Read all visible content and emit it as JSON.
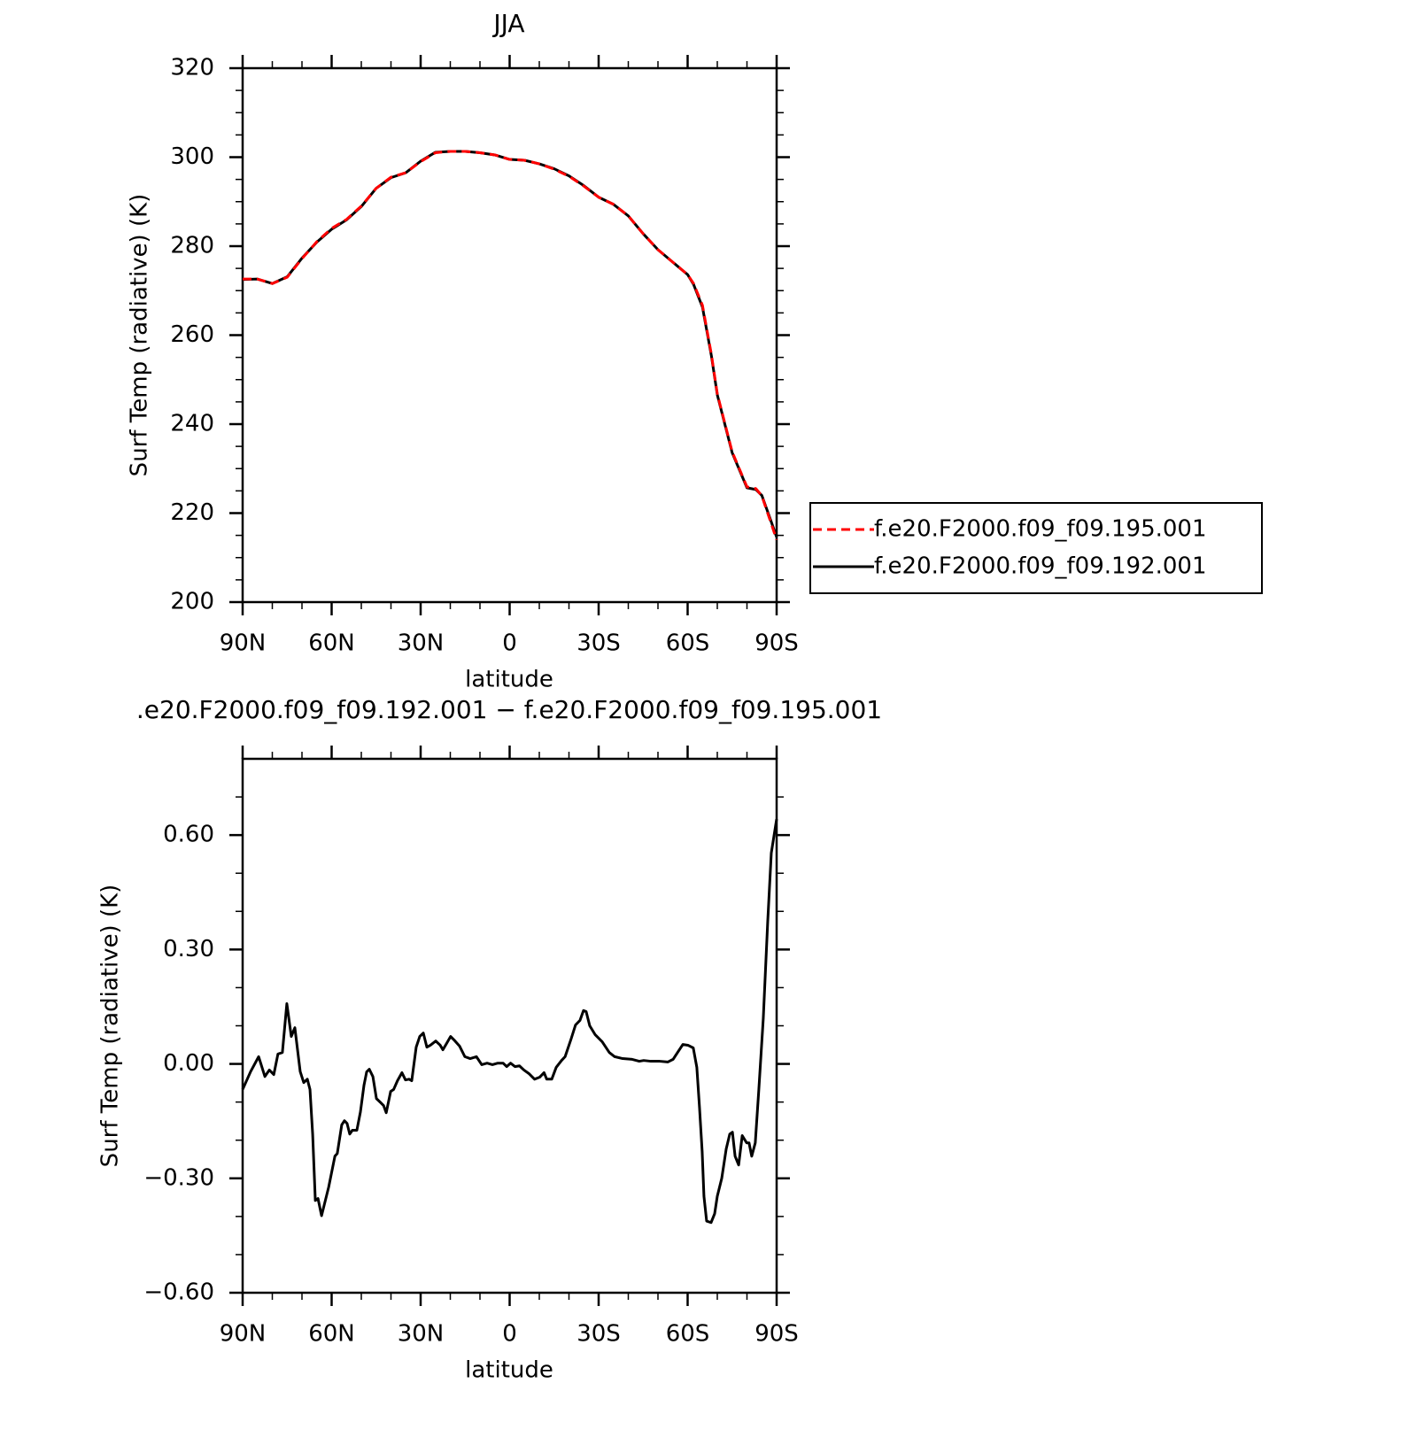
{
  "chart_data": [
    {
      "type": "line",
      "title": "JJA",
      "x_label": "latitude",
      "y_label": "Surf Temp (radiative) (K)",
      "xlim": [
        90,
        -90
      ],
      "xticks": [
        {
          "value": 90,
          "label": "90N"
        },
        {
          "value": 60,
          "label": "60N"
        },
        {
          "value": 30,
          "label": "30N"
        },
        0,
        {
          "value": -30,
          "label": "30S"
        },
        {
          "value": -60,
          "label": "60S"
        },
        {
          "value": -90,
          "label": "90S"
        }
      ],
      "minor_xticks": [
        80,
        70,
        50,
        40,
        20,
        10,
        -10,
        -20,
        -40,
        -50,
        -70,
        -80
      ],
      "ylim": [
        200,
        320
      ],
      "yticks": [
        200,
        220,
        240,
        260,
        280,
        300,
        320
      ],
      "minor_yticks": [
        205,
        210,
        215,
        225,
        230,
        235,
        245,
        250,
        255,
        265,
        270,
        275,
        285,
        290,
        295,
        305,
        310,
        315
      ],
      "legend": "right",
      "x": [
        90,
        85,
        80,
        75,
        70,
        65,
        60,
        55,
        50,
        45,
        40,
        35,
        30,
        25,
        20,
        15,
        10,
        5,
        0,
        -5,
        -10,
        -15,
        -20,
        -25,
        -30,
        -35,
        -40,
        -45,
        -50,
        -55,
        -60,
        -62,
        -65,
        -68,
        -70,
        -75,
        -80,
        -83,
        -85,
        -88,
        -90
      ],
      "series": [
        {
          "name": "f.e20.F2000.f09_f09.195.001",
          "color": "#ff0000",
          "dashed": true,
          "values": [
            272.6,
            272.6,
            271.6,
            273.0,
            277.2,
            281.0,
            284.0,
            286.0,
            289.0,
            293.0,
            295.5,
            296.5,
            299.0,
            301.0,
            301.3,
            301.3,
            301.0,
            300.5,
            299.5,
            299.3,
            298.5,
            297.3,
            295.7,
            293.5,
            291.0,
            289.4,
            286.8,
            282.8,
            279.2,
            276.4,
            273.6,
            271.6,
            266.7,
            255.7,
            246.8,
            233.8,
            225.9,
            225.5,
            223.9,
            218.0,
            214.0
          ]
        },
        {
          "name": "f.e20.F2000.f09_f09.192.001",
          "color": "#000000",
          "dashed": false,
          "values": [
            272.5,
            272.6,
            271.6,
            273.1,
            277.3,
            280.9,
            283.8,
            285.9,
            288.9,
            293.0,
            295.4,
            296.5,
            299.1,
            301.1,
            301.3,
            301.3,
            301.0,
            300.5,
            299.5,
            299.3,
            298.5,
            297.4,
            295.8,
            293.6,
            291.0,
            289.4,
            286.8,
            282.8,
            279.2,
            276.4,
            273.6,
            271.4,
            266.3,
            255.4,
            246.6,
            233.6,
            225.7,
            225.3,
            224.0,
            218.4,
            214.6
          ]
        }
      ]
    },
    {
      "type": "line",
      "title": ".e20.F2000.f09_f09.192.001 − f.e20.F2000.f09_f09.195.001",
      "x_label": "latitude",
      "y_label": "Surf Temp (radiative) (K)",
      "xlim": [
        90,
        -90
      ],
      "xticks": [
        {
          "value": 90,
          "label": "90N"
        },
        {
          "value": 60,
          "label": "60N"
        },
        {
          "value": 30,
          "label": "30N"
        },
        0,
        {
          "value": -30,
          "label": "30S"
        },
        {
          "value": -60,
          "label": "60S"
        },
        {
          "value": -90,
          "label": "90S"
        }
      ],
      "minor_xticks": [
        80,
        70,
        50,
        40,
        20,
        10,
        -10,
        -20,
        -40,
        -50,
        -70,
        -80
      ],
      "ylim": [
        -0.6,
        0.8
      ],
      "yticks": [
        {
          "value": -0.6,
          "label": "−0.60"
        },
        {
          "value": -0.3,
          "label": "−0.30"
        },
        {
          "value": 0,
          "label": "0.00"
        },
        {
          "value": 0.3,
          "label": "0.30"
        },
        {
          "value": 0.6,
          "label": "0.60"
        }
      ],
      "minor_yticks": [
        -0.5,
        -0.4,
        -0.2,
        -0.1,
        0.1,
        0.2,
        0.4,
        0.5,
        0.7
      ],
      "x": [
        90,
        87.3,
        84.6,
        82.5,
        81.0,
        79.5,
        78.1,
        76.6,
        75.1,
        73.6,
        72.4,
        70.6,
        69.4,
        68.2,
        67.3,
        66.4,
        65.5,
        64.6,
        63.4,
        61.0,
        58.9,
        58.1,
        56.6,
        55.7,
        54.8,
        53.9,
        53.0,
        51.5,
        50.3,
        49.1,
        48.2,
        47.3,
        46.1,
        44.9,
        43.4,
        42.5,
        41.6,
        40.1,
        39.1,
        37.8,
        36.3,
        35.1,
        33.9,
        33.0,
        31.5,
        30.3,
        29.1,
        27.9,
        26.7,
        24.9,
        23.4,
        22.5,
        21.3,
        19.9,
        18.4,
        16.9,
        15.1,
        13.3,
        11.2,
        9.4,
        7.6,
        5.8,
        4.0,
        2.2,
        1.0,
        -0.3,
        -1.8,
        -3.3,
        -4.8,
        -6.6,
        -8.4,
        -10.1,
        -11.6,
        -12.5,
        -14.2,
        -15.7,
        -17.5,
        -18.7,
        -20.7,
        -22.2,
        -23.7,
        -24.9,
        -25.8,
        -27.0,
        -28.8,
        -31.2,
        -33.6,
        -35.4,
        -38.1,
        -41.3,
        -43.7,
        -45.2,
        -47.6,
        -50.6,
        -53.3,
        -55.1,
        -56.6,
        -58.4,
        -60.1,
        -61.9,
        -63.1,
        -64.0,
        -64.9,
        -65.5,
        -66.4,
        -67.9,
        -69.1,
        -70.0,
        -71.5,
        -73.0,
        -74.2,
        -75.1,
        -76.0,
        -77.2,
        -78.4,
        -79.9,
        -80.7,
        -81.6,
        -82.8,
        -84.0,
        -85.5,
        -87.0,
        -88.2,
        -90
      ],
      "color": "#000000",
      "values": [
        -0.067,
        -0.02,
        0.019,
        -0.033,
        -0.016,
        -0.028,
        0.026,
        0.03,
        0.158,
        0.072,
        0.095,
        -0.02,
        -0.049,
        -0.04,
        -0.067,
        -0.184,
        -0.358,
        -0.353,
        -0.398,
        -0.323,
        -0.242,
        -0.235,
        -0.16,
        -0.149,
        -0.156,
        -0.184,
        -0.174,
        -0.174,
        -0.126,
        -0.056,
        -0.021,
        -0.014,
        -0.033,
        -0.091,
        -0.102,
        -0.109,
        -0.128,
        -0.072,
        -0.067,
        -0.044,
        -0.023,
        -0.042,
        -0.04,
        -0.044,
        0.044,
        0.072,
        0.081,
        0.044,
        0.049,
        0.06,
        0.049,
        0.037,
        0.053,
        0.072,
        0.06,
        0.047,
        0.019,
        0.014,
        0.019,
        -0.002,
        0.002,
        -0.002,
        0.002,
        0.002,
        -0.007,
        0.002,
        -0.007,
        -0.005,
        -0.016,
        -0.026,
        -0.04,
        -0.035,
        -0.023,
        -0.04,
        -0.04,
        -0.009,
        0.009,
        0.019,
        0.065,
        0.102,
        0.114,
        0.14,
        0.137,
        0.1,
        0.077,
        0.058,
        0.03,
        0.019,
        0.014,
        0.012,
        0.007,
        0.009,
        0.007,
        0.007,
        0.005,
        0.012,
        0.03,
        0.051,
        0.049,
        0.042,
        -0.009,
        -0.114,
        -0.23,
        -0.347,
        -0.412,
        -0.416,
        -0.393,
        -0.347,
        -0.3,
        -0.223,
        -0.184,
        -0.179,
        -0.242,
        -0.265,
        -0.188,
        -0.207,
        -0.207,
        -0.242,
        -0.207,
        -0.067,
        0.119,
        0.374,
        0.553,
        0.642
      ]
    }
  ]
}
